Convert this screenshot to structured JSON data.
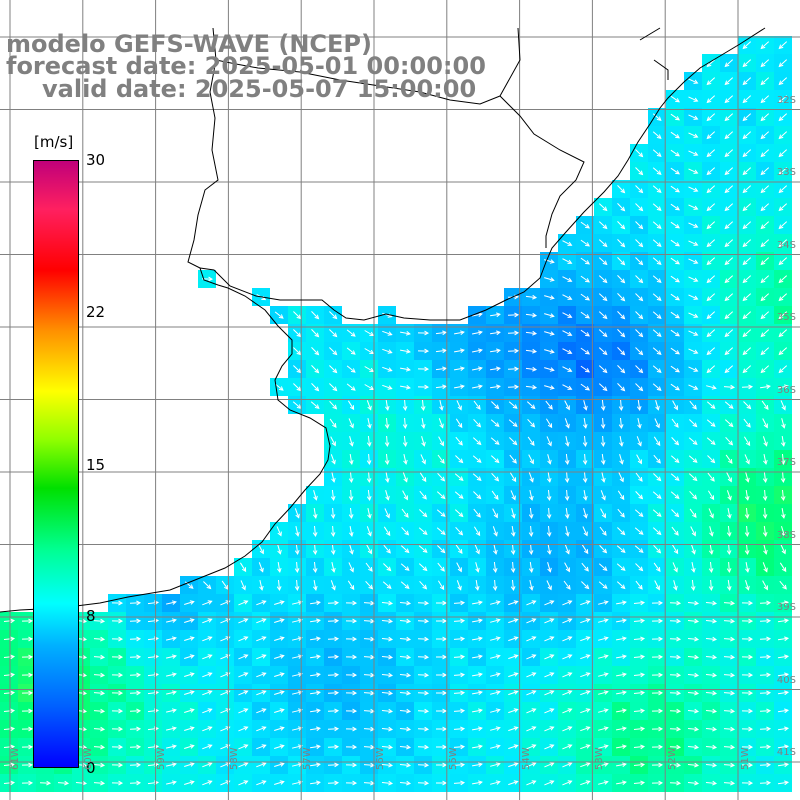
{
  "title": {
    "line1": "modelo GEFS-WAVE (NCEP)",
    "line2": "forecast date: 2025-05-01 00:00:00",
    "line3": "valid date: 2025-05-07 15:00:00"
  },
  "colorbar": {
    "units": "[m/s]",
    "ticks": [
      "30",
      "22",
      "15",
      "8",
      "0"
    ],
    "colors": [
      "#0000ff",
      "#00b0ff",
      "#00ffff",
      "#00e000",
      "#ffff00",
      "#ff0000",
      "#c0007a"
    ]
  },
  "axes": {
    "lat_labels": [
      "32S",
      "33S",
      "34S",
      "35S",
      "36S",
      "37S",
      "38S",
      "39S",
      "40S",
      "41S"
    ],
    "lon_labels": [
      "61W",
      "60W",
      "59W",
      "58W",
      "57W",
      "56W",
      "55W",
      "54W",
      "53W",
      "52W",
      "51W"
    ]
  },
  "colors": {
    "land": "#ffffff",
    "grid": "#808080",
    "coast": "#000000",
    "arrows": "#ffffff"
  }
}
